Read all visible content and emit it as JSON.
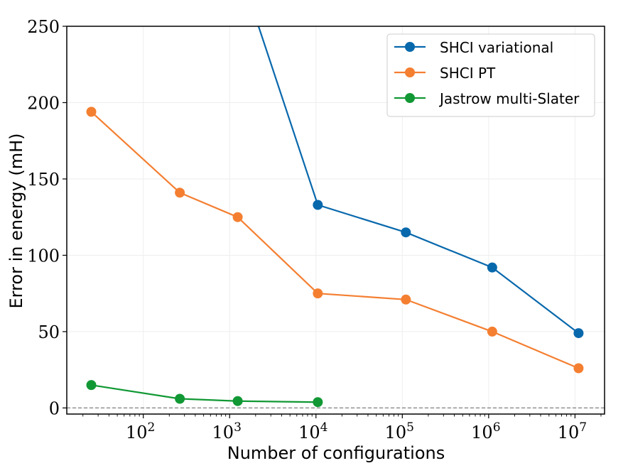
{
  "chart_data": {
    "type": "line",
    "xlabel": "Number of configurations",
    "ylabel": "Error in energy (mH)",
    "xscale": "log",
    "xlim": [
      13,
      22000000
    ],
    "ylim": [
      -4,
      250
    ],
    "yticks": [
      0,
      50,
      100,
      150,
      200,
      250
    ],
    "xticks": [
      {
        "value": 100,
        "base": "10",
        "exp": "2"
      },
      {
        "value": 1000,
        "base": "10",
        "exp": "3"
      },
      {
        "value": 10000,
        "base": "10",
        "exp": "4"
      },
      {
        "value": 100000,
        "base": "10",
        "exp": "5"
      },
      {
        "value": 1000000,
        "base": "10",
        "exp": "6"
      },
      {
        "value": 10000000,
        "base": "10",
        "exp": "7"
      }
    ],
    "reference_line": {
      "y": 0,
      "style": "dashed",
      "color": "#808080"
    },
    "grid": true,
    "legend_position": "top-right",
    "series": [
      {
        "name": "SHCI variational",
        "color": "#0868ac",
        "x": [
          1100,
          10500,
          110000,
          1100000,
          11000000
        ],
        "y": [
          300,
          133,
          115,
          92,
          49
        ]
      },
      {
        "name": "SHCI PT",
        "color": "#f47f31",
        "x": [
          25,
          265,
          1240,
          10500,
          110000,
          1100000,
          11000000
        ],
        "y": [
          194,
          141,
          125,
          75,
          71,
          50,
          26
        ]
      },
      {
        "name": "Jastrow multi-Slater",
        "color": "#119834",
        "x": [
          25,
          265,
          1240,
          10500
        ],
        "y": [
          15,
          6,
          4.5,
          3.8
        ]
      }
    ]
  }
}
